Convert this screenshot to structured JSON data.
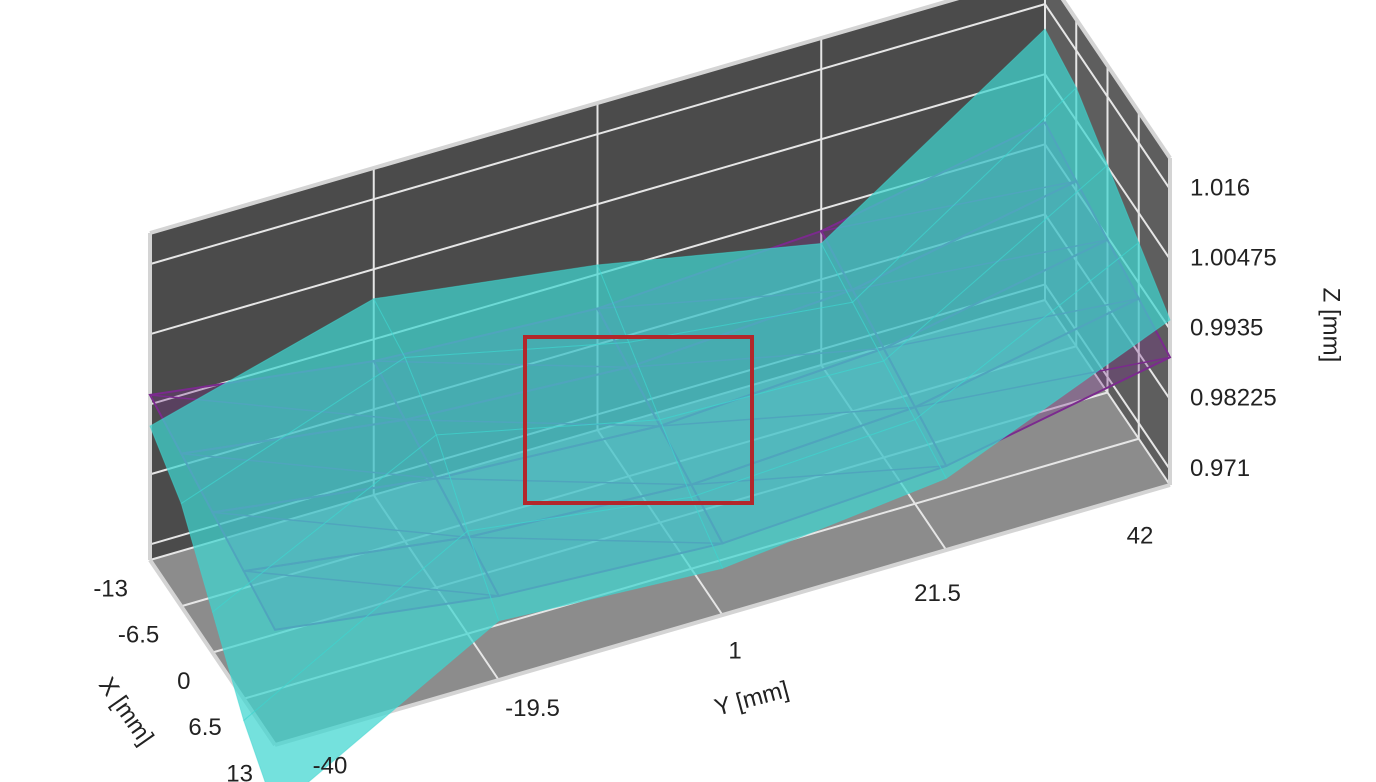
{
  "chart_data": {
    "type": "surface3d",
    "xlabel": "X [mm]",
    "ylabel": "Y [mm]",
    "zlabel": "Z [mm]",
    "xlim": [
      -13,
      13
    ],
    "ylim": [
      -40,
      42
    ],
    "zlim": [
      0.9685,
      1.021
    ],
    "xticks": [
      -13,
      -6.5,
      0,
      6.5,
      13
    ],
    "yticks": [
      -40,
      -19.5,
      1,
      21.5,
      42
    ],
    "zticks": [
      0.971,
      0.98225,
      0.9935,
      1.00475,
      1.016
    ],
    "grid": true,
    "surfaces": [
      {
        "color": "#7b2a8e",
        "style": "wireframe",
        "x": [
          -13,
          -6.5,
          0,
          6.5,
          13
        ],
        "y": [
          -40,
          -19.5,
          1,
          21.5,
          42
        ],
        "z": [
          [
            0.995,
            0.99,
            0.988,
            0.99,
            0.997
          ],
          [
            0.993,
            0.988,
            0.986,
            0.988,
            0.995
          ],
          [
            0.991,
            0.986,
            0.984,
            0.986,
            0.993
          ],
          [
            0.989,
            0.984,
            0.982,
            0.984,
            0.991
          ],
          [
            0.987,
            0.982,
            0.98,
            0.982,
            0.989
          ]
        ]
      },
      {
        "color": "#3fd6d0",
        "style": "solid",
        "x": [
          -13,
          -6.5,
          0,
          6.5,
          13
        ],
        "y": [
          -40,
          -19.5,
          1,
          21.5,
          42
        ],
        "z": [
          [
            0.99,
            1.0,
            0.995,
            0.988,
            1.012
          ],
          [
            0.985,
            0.998,
            0.99,
            0.986,
            1.01
          ],
          [
            0.975,
            0.993,
            0.985,
            0.984,
            1.005
          ],
          [
            0.965,
            0.985,
            0.98,
            0.982,
            1.0
          ],
          [
            0.958,
            0.978,
            0.976,
            0.98,
            0.995
          ]
        ]
      }
    ]
  }
}
